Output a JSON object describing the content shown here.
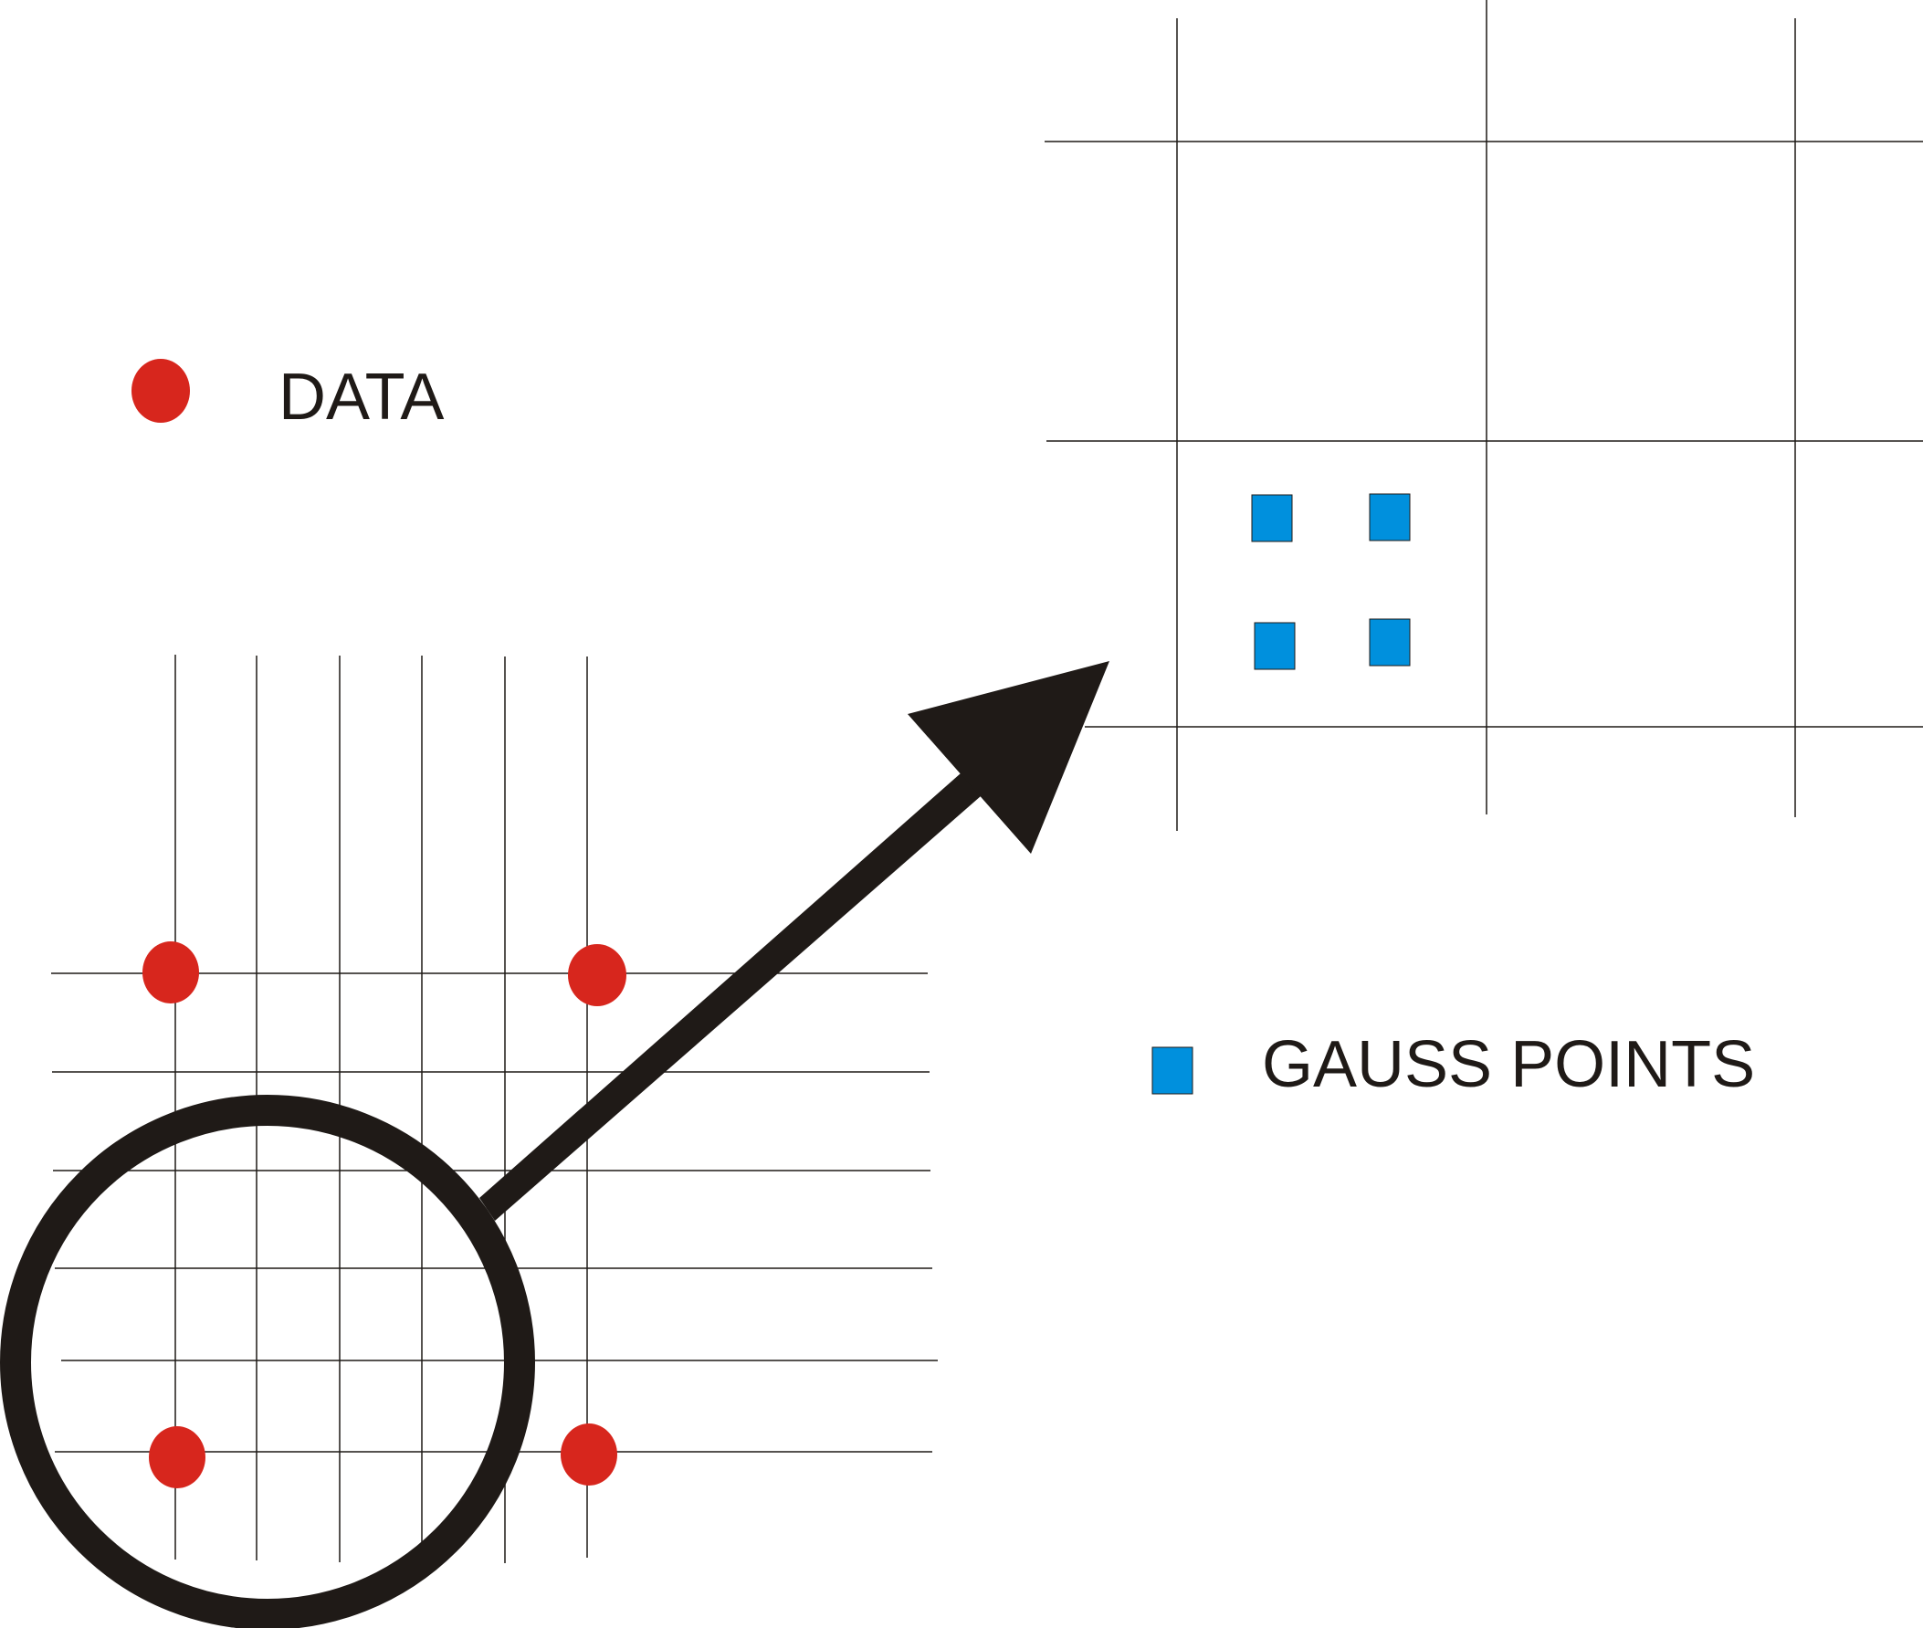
{
  "legend": {
    "data_label": "DATA",
    "gauss_label": "GAUSS POINTS"
  },
  "colors": {
    "data_point": "#d7261d",
    "gauss_point": "#0090dd",
    "line": "#1f1a17",
    "background": "#ffffff"
  }
}
